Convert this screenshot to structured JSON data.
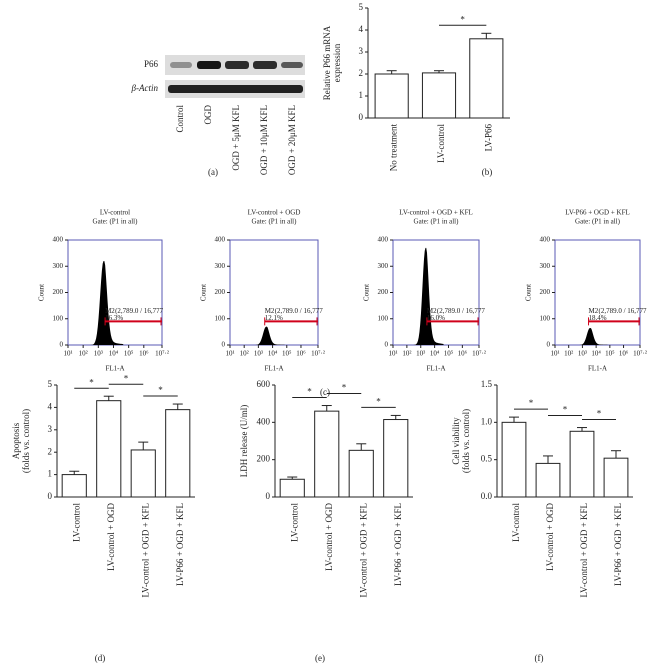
{
  "blot": {
    "panel": "(a)",
    "rows": [
      "P66",
      "β-Actin"
    ],
    "lanes": [
      "Control",
      "OGD",
      "OGD + 5μM KFL",
      "OGD + 10μM KFL",
      "OGD + 20μM KFL"
    ]
  },
  "chart_data": [
    {
      "type": "bar",
      "panel": "(b)",
      "ylabel": [
        "Relative P66 mRNA",
        "expression"
      ],
      "categories": [
        "No treatment",
        "LV-control",
        "LV-P66"
      ],
      "values": [
        2.0,
        2.05,
        3.6
      ],
      "errors": [
        0.15,
        0.1,
        0.25
      ],
      "ylim": [
        0,
        5
      ],
      "yticks": [
        0,
        1,
        2,
        3,
        4,
        5
      ],
      "significance": [
        {
          "label": "*",
          "between": [
            1,
            2
          ]
        }
      ]
    },
    {
      "type": "flow",
      "panel": "(c)",
      "title": "LV-control",
      "subtitle": "Gate: (P1 in all)",
      "xlabel": "FL1-A",
      "ylabel": "Count",
      "xscale": "log",
      "xlim": [
        10,
        15848932
      ],
      "xticks": [
        {
          "value": 10,
          "label": "10¹"
        },
        {
          "value": 100,
          "label": "10²"
        },
        {
          "value": 1000,
          "label": "10³"
        },
        {
          "value": 10000,
          "label": "10⁴"
        },
        {
          "value": 100000,
          "label": "10⁵"
        },
        {
          "value": 1000000,
          "label": "10⁶"
        },
        {
          "value": 15848932,
          "label": "10⁷·²"
        }
      ],
      "ylim": [
        0,
        400
      ],
      "yticks": [
        0,
        100,
        200,
        300,
        400
      ],
      "peak": 320,
      "peak_at": 2200,
      "gate": {
        "marker": "M2",
        "start": 2789.0,
        "text": "(2,789.0 / 16,777",
        "level": 90,
        "percent": "16.3%",
        "color": "#d0021b"
      }
    },
    {
      "type": "flow",
      "title": "LV-control + OGD",
      "subtitle": "Gate: (P1 in all)",
      "xlabel": "FL1-A",
      "ylabel": "Count",
      "xscale": "log",
      "xlim": [
        10,
        15848932
      ],
      "xticks": [
        {
          "value": 10,
          "label": "10¹"
        },
        {
          "value": 100,
          "label": "10²"
        },
        {
          "value": 1000,
          "label": "10³"
        },
        {
          "value": 10000,
          "label": "10⁴"
        },
        {
          "value": 100000,
          "label": "10⁵"
        },
        {
          "value": 1000000,
          "label": "10⁶"
        },
        {
          "value": 15848932,
          "label": "10⁷·²"
        }
      ],
      "ylim": [
        0,
        400
      ],
      "yticks": [
        0,
        100,
        200,
        300,
        400
      ],
      "peak": 70,
      "peak_at": 3500,
      "gate": {
        "marker": "M2",
        "start": 2789.0,
        "text": "(2,789.0 / 16,777",
        "level": 90,
        "percent": "12.1%",
        "color": "#d0021b"
      }
    },
    {
      "type": "flow",
      "title": "LV-control + OGD + KFL",
      "subtitle": "Gate: (P1 in all)",
      "xlabel": "FL1-A",
      "ylabel": "Count",
      "xscale": "log",
      "xlim": [
        10,
        15848932
      ],
      "xticks": [
        {
          "value": 10,
          "label": "10¹"
        },
        {
          "value": 100,
          "label": "10²"
        },
        {
          "value": 1000,
          "label": "10³"
        },
        {
          "value": 10000,
          "label": "10⁴"
        },
        {
          "value": 100000,
          "label": "10⁵"
        },
        {
          "value": 1000000,
          "label": "10⁶"
        },
        {
          "value": 15848932,
          "label": "10⁷·²"
        }
      ],
      "ylim": [
        0,
        400
      ],
      "yticks": [
        0,
        100,
        200,
        300,
        400
      ],
      "peak": 370,
      "peak_at": 2200,
      "gate": {
        "marker": "M2",
        "start": 2789.0,
        "text": "(2,789.0 / 16,777",
        "level": 90,
        "percent": "16.0%",
        "color": "#d0021b"
      }
    },
    {
      "type": "flow",
      "title": "LV-P66 + OGD + KFL",
      "subtitle": "Gate: (P1 in all)",
      "xlabel": "FL1-A",
      "ylabel": "Count",
      "xscale": "log",
      "xlim": [
        10,
        15848932
      ],
      "xticks": [
        {
          "value": 10,
          "label": "10¹"
        },
        {
          "value": 100,
          "label": "10²"
        },
        {
          "value": 1000,
          "label": "10³"
        },
        {
          "value": 10000,
          "label": "10⁴"
        },
        {
          "value": 100000,
          "label": "10⁵"
        },
        {
          "value": 1000000,
          "label": "10⁶"
        },
        {
          "value": 15848932,
          "label": "10⁷·²"
        }
      ],
      "ylim": [
        0,
        400
      ],
      "yticks": [
        0,
        100,
        200,
        300,
        400
      ],
      "peak": 65,
      "peak_at": 3500,
      "gate": {
        "marker": "M2",
        "start": 2789.0,
        "text": "(2,789.0 / 16,777",
        "level": 90,
        "percent": "18.4%",
        "color": "#d0021b"
      }
    },
    {
      "type": "bar",
      "panel": "(d)",
      "ylabel": [
        "Apoptosis",
        "(folds vs. control)"
      ],
      "categories": [
        "LV-control",
        "LV-control + OGD",
        "LV-control + OGD + KFL",
        "LV-P66 + OGD + KFL"
      ],
      "values": [
        1.0,
        4.3,
        2.1,
        3.9
      ],
      "errors": [
        0.15,
        0.2,
        0.35,
        0.25
      ],
      "ylim": [
        0,
        5
      ],
      "yticks": [
        0,
        1,
        2,
        3,
        4,
        5
      ],
      "significance": [
        {
          "label": "*",
          "between": [
            0,
            1
          ]
        },
        {
          "label": "*",
          "between": [
            1,
            2
          ]
        },
        {
          "label": "*",
          "between": [
            2,
            3
          ]
        }
      ]
    },
    {
      "type": "bar",
      "panel": "(e)",
      "ylabel": [
        "LDH release (U/ml)"
      ],
      "categories": [
        "LV-control",
        "LV-control + OGD",
        "LV-control + OGD + KFL",
        "LV-P66 + OGD + KFL"
      ],
      "values": [
        95,
        460,
        250,
        415
      ],
      "errors": [
        12,
        30,
        35,
        22
      ],
      "ylim": [
        0,
        600
      ],
      "yticks": [
        0,
        200,
        400,
        600
      ],
      "significance": [
        {
          "label": "*",
          "between": [
            0,
            1
          ]
        },
        {
          "label": "*",
          "between": [
            1,
            2
          ]
        },
        {
          "label": "*",
          "between": [
            2,
            3
          ]
        }
      ]
    },
    {
      "type": "bar",
      "panel": "(f)",
      "ylabel": [
        "Cell viability",
        "(folds vs. control)"
      ],
      "categories": [
        "LV-control",
        "LV-control + OGD",
        "LV-control + OGD + KFL",
        "LV-P66 + OGD + KFL"
      ],
      "values": [
        1.0,
        0.45,
        0.88,
        0.52
      ],
      "errors": [
        0.07,
        0.1,
        0.05,
        0.1
      ],
      "ylim": [
        0,
        1.5
      ],
      "yticks": [
        {
          "value": 0,
          "label": "0.0"
        },
        0.5,
        {
          "value": 1,
          "label": "1.0"
        },
        1.5
      ],
      "significance": [
        {
          "label": "*",
          "between": [
            0,
            1
          ]
        },
        {
          "label": "*",
          "between": [
            1,
            2
          ]
        },
        {
          "label": "*",
          "between": [
            2,
            3
          ]
        }
      ]
    }
  ]
}
